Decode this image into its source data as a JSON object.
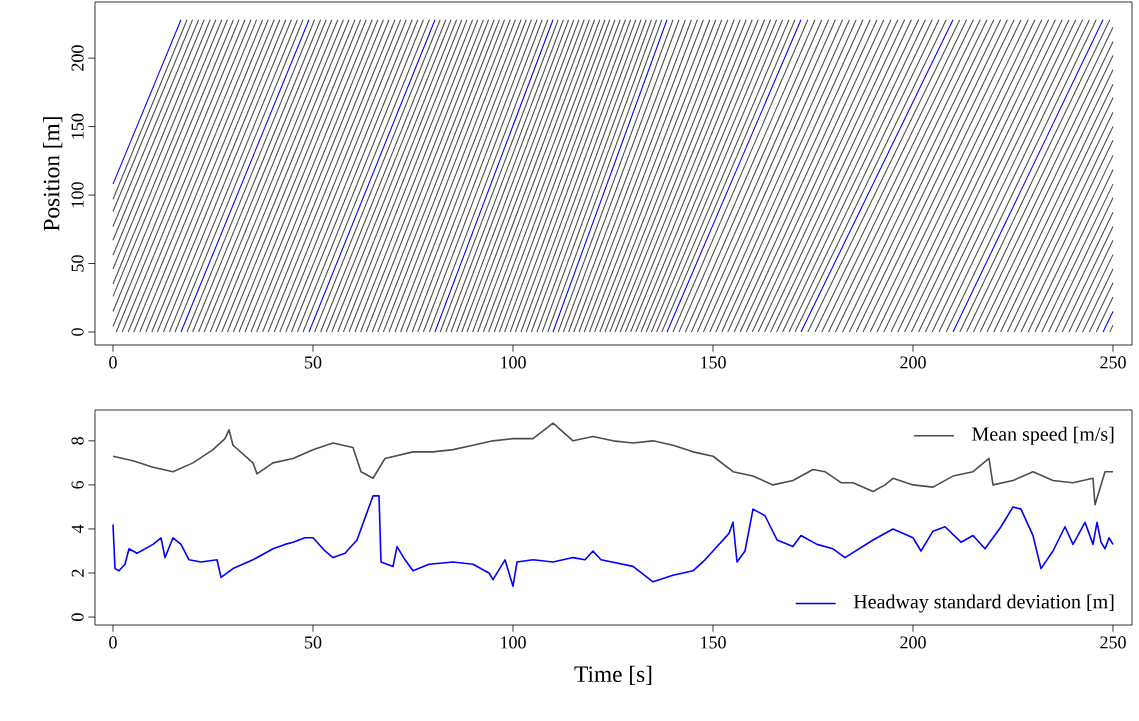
{
  "chart_data": [
    {
      "type": "line",
      "ylabel": "Position [m]",
      "xlim": [
        -4.5,
        254.75
      ],
      "ylim": [
        -9.5,
        241
      ],
      "xticks": [
        0,
        50,
        100,
        150,
        200,
        250
      ],
      "yticks": [
        0,
        50,
        100,
        150,
        200
      ],
      "series": [
        {
          "color": "#4d4d4d",
          "x": [
            0,
            18.5
          ],
          "values": [
            97,
            228
          ]
        },
        {
          "color": "#4d4d4d",
          "x": [
            0,
            19.9
          ],
          "values": [
            88,
            228
          ]
        },
        {
          "color": "#4d4d4d",
          "x": [
            0,
            21.4
          ],
          "values": [
            77,
            228
          ]
        },
        {
          "color": "#4d4d4d",
          "x": [
            0,
            22.8
          ],
          "values": [
            67,
            228
          ]
        },
        {
          "color": "#4d4d4d",
          "x": [
            0,
            24.3
          ],
          "values": [
            56,
            228
          ]
        },
        {
          "color": "#4d4d4d",
          "x": [
            0,
            25.7
          ],
          "values": [
            46,
            228
          ]
        },
        {
          "color": "#4d4d4d",
          "x": [
            0,
            27.2
          ],
          "values": [
            35,
            228
          ]
        },
        {
          "color": "#4d4d4d",
          "x": [
            0,
            28.6
          ],
          "values": [
            26,
            228
          ]
        },
        {
          "color": "#4d4d4d",
          "x": [
            0,
            30.1
          ],
          "values": [
            15,
            228
          ]
        },
        {
          "color": "#4d4d4d",
          "x": [
            0,
            31.5
          ],
          "values": [
            4,
            228
          ]
        },
        {
          "color": "#4d4d4d",
          "x": [
            0.8,
            33
          ],
          "values": [
            0,
            228
          ]
        },
        {
          "color": "#4d4d4d",
          "x": [
            2.3,
            34.5
          ],
          "values": [
            0,
            228
          ]
        },
        {
          "color": "#4d4d4d",
          "x": [
            3.8,
            35.9
          ],
          "values": [
            0,
            228
          ]
        },
        {
          "color": "#4d4d4d",
          "x": [
            5.2,
            37.4
          ],
          "values": [
            0,
            228
          ]
        },
        {
          "color": "#4d4d4d",
          "x": [
            6.7,
            38.8
          ],
          "values": [
            0,
            228
          ]
        },
        {
          "color": "#4d4d4d",
          "x": [
            8.2,
            40.3
          ],
          "values": [
            0,
            228
          ]
        },
        {
          "color": "#4d4d4d",
          "x": [
            9.7,
            41.7
          ],
          "values": [
            0,
            228
          ]
        },
        {
          "color": "#4d4d4d",
          "x": [
            11.1,
            43.2
          ],
          "values": [
            0,
            228
          ]
        },
        {
          "color": "#4d4d4d",
          "x": [
            12.6,
            44.6
          ],
          "values": [
            0,
            228
          ]
        },
        {
          "color": "#4d4d4d",
          "x": [
            14.1,
            46.1
          ],
          "values": [
            0,
            228
          ]
        },
        {
          "color": "#4d4d4d",
          "x": [
            15.5,
            47.5
          ],
          "values": [
            0,
            228
          ]
        },
        {
          "color": "#4d4d4d",
          "x": [
            18.5,
            50.4
          ],
          "values": [
            0,
            228
          ]
        },
        {
          "color": "#4d4d4d",
          "x": [
            19.9,
            51.9
          ],
          "values": [
            0,
            228
          ]
        },
        {
          "color": "#4d4d4d",
          "x": [
            21.4,
            53.3
          ],
          "values": [
            0,
            228
          ]
        },
        {
          "color": "#4d4d4d",
          "x": [
            22.8,
            54.7
          ],
          "values": [
            0,
            228
          ]
        },
        {
          "color": "#4d4d4d",
          "x": [
            24.3,
            56.2
          ],
          "values": [
            0,
            228
          ]
        },
        {
          "color": "#4d4d4d",
          "x": [
            25.7,
            57.6
          ],
          "values": [
            0,
            228
          ]
        },
        {
          "color": "#4d4d4d",
          "x": [
            27.2,
            59
          ],
          "values": [
            0,
            228
          ]
        },
        {
          "color": "#4d4d4d",
          "x": [
            28.6,
            60.5
          ],
          "values": [
            0,
            228
          ]
        },
        {
          "color": "#4d4d4d",
          "x": [
            30.1,
            61.9
          ],
          "values": [
            0,
            228
          ]
        },
        {
          "color": "#4d4d4d",
          "x": [
            31.5,
            63.3
          ],
          "values": [
            0,
            228
          ]
        },
        {
          "color": "#4d4d4d",
          "x": [
            33,
            64.8
          ],
          "values": [
            0,
            228
          ]
        },
        {
          "color": "#4d4d4d",
          "x": [
            34.5,
            66.2
          ],
          "values": [
            0,
            228
          ]
        },
        {
          "color": "#4d4d4d",
          "x": [
            35.9,
            67.6
          ],
          "values": [
            0,
            228
          ]
        },
        {
          "color": "#4d4d4d",
          "x": [
            37.4,
            69
          ],
          "values": [
            0,
            228
          ]
        },
        {
          "color": "#4d4d4d",
          "x": [
            38.8,
            70.5
          ],
          "values": [
            0,
            228
          ]
        },
        {
          "color": "#4d4d4d",
          "x": [
            40.3,
            71.9
          ],
          "values": [
            0,
            228
          ]
        },
        {
          "color": "#4d4d4d",
          "x": [
            41.7,
            73.3
          ],
          "values": [
            0,
            228
          ]
        },
        {
          "color": "#4d4d4d",
          "x": [
            43.2,
            74.8
          ],
          "values": [
            0,
            228
          ]
        },
        {
          "color": "#4d4d4d",
          "x": [
            44.6,
            76.2
          ],
          "values": [
            0,
            228
          ]
        },
        {
          "color": "#4d4d4d",
          "x": [
            46.1,
            77.6
          ],
          "values": [
            0,
            228
          ]
        },
        {
          "color": "#4d4d4d",
          "x": [
            47.5,
            79.1
          ],
          "values": [
            0,
            228
          ]
        },
        {
          "color": "#4d4d4d",
          "x": [
            50.4,
            81.8
          ],
          "values": [
            0,
            228
          ]
        },
        {
          "color": "#4d4d4d",
          "x": [
            51.9,
            83.2
          ],
          "values": [
            0,
            228
          ]
        },
        {
          "color": "#4d4d4d",
          "x": [
            53.3,
            84.5
          ],
          "values": [
            0,
            228
          ]
        },
        {
          "color": "#4d4d4d",
          "x": [
            54.7,
            85.9
          ],
          "values": [
            0,
            228
          ]
        },
        {
          "color": "#4d4d4d",
          "x": [
            56.2,
            87.2
          ],
          "values": [
            0,
            228
          ]
        },
        {
          "color": "#4d4d4d",
          "x": [
            57.6,
            88.5
          ],
          "values": [
            0,
            228
          ]
        },
        {
          "color": "#4d4d4d",
          "x": [
            59,
            89.9
          ],
          "values": [
            0,
            228
          ]
        },
        {
          "color": "#4d4d4d",
          "x": [
            60.5,
            91.2
          ],
          "values": [
            0,
            228
          ]
        },
        {
          "color": "#4d4d4d",
          "x": [
            61.9,
            92.6
          ],
          "values": [
            0,
            228
          ]
        },
        {
          "color": "#4d4d4d",
          "x": [
            63.3,
            93.9
          ],
          "values": [
            0,
            228
          ]
        },
        {
          "color": "#4d4d4d",
          "x": [
            64.8,
            95.3
          ],
          "values": [
            0,
            228
          ]
        },
        {
          "color": "#4d4d4d",
          "x": [
            66.2,
            96.6
          ],
          "values": [
            0,
            228
          ]
        },
        {
          "color": "#4d4d4d",
          "x": [
            67.6,
            97.9
          ],
          "values": [
            0,
            228
          ]
        },
        {
          "color": "#4d4d4d",
          "x": [
            69,
            99.3
          ],
          "values": [
            0,
            228
          ]
        },
        {
          "color": "#4d4d4d",
          "x": [
            70.5,
            100.6
          ],
          "values": [
            0,
            228
          ]
        },
        {
          "color": "#4d4d4d",
          "x": [
            71.9,
            102
          ],
          "values": [
            0,
            228
          ]
        },
        {
          "color": "#4d4d4d",
          "x": [
            73.3,
            103.3
          ],
          "values": [
            0,
            228
          ]
        },
        {
          "color": "#4d4d4d",
          "x": [
            74.8,
            104.6
          ],
          "values": [
            0,
            228
          ]
        },
        {
          "color": "#4d4d4d",
          "x": [
            76.2,
            106
          ],
          "values": [
            0,
            228
          ]
        },
        {
          "color": "#4d4d4d",
          "x": [
            77.6,
            107.3
          ],
          "values": [
            0,
            228
          ]
        },
        {
          "color": "#4d4d4d",
          "x": [
            79.1,
            108.7
          ],
          "values": [
            0,
            228
          ]
        },
        {
          "color": "#4d4d4d",
          "x": [
            81.8,
            111.3
          ],
          "values": [
            0,
            228
          ]
        },
        {
          "color": "#4d4d4d",
          "x": [
            83.2,
            112.6
          ],
          "values": [
            0,
            228
          ]
        },
        {
          "color": "#4d4d4d",
          "x": [
            84.5,
            113.9
          ],
          "values": [
            0,
            228
          ]
        },
        {
          "color": "#4d4d4d",
          "x": [
            85.9,
            115.2
          ],
          "values": [
            0,
            228
          ]
        },
        {
          "color": "#4d4d4d",
          "x": [
            87.2,
            116.5
          ],
          "values": [
            0,
            228
          ]
        },
        {
          "color": "#4d4d4d",
          "x": [
            88.5,
            117.8
          ],
          "values": [
            0,
            228
          ]
        },
        {
          "color": "#4d4d4d",
          "x": [
            89.9,
            119.1
          ],
          "values": [
            0,
            228
          ]
        },
        {
          "color": "#4d4d4d",
          "x": [
            91.2,
            120.4
          ],
          "values": [
            0,
            228
          ]
        },
        {
          "color": "#4d4d4d",
          "x": [
            92.6,
            121.7
          ],
          "values": [
            0,
            228
          ]
        },
        {
          "color": "#4d4d4d",
          "x": [
            93.9,
            123
          ],
          "values": [
            0,
            228
          ]
        },
        {
          "color": "#4d4d4d",
          "x": [
            95.3,
            124.2
          ],
          "values": [
            0,
            228
          ]
        },
        {
          "color": "#4d4d4d",
          "x": [
            96.6,
            125.5
          ],
          "values": [
            0,
            228
          ]
        },
        {
          "color": "#4d4d4d",
          "x": [
            97.9,
            126.8
          ],
          "values": [
            0,
            228
          ]
        },
        {
          "color": "#4d4d4d",
          "x": [
            99.3,
            128.1
          ],
          "values": [
            0,
            228
          ]
        },
        {
          "color": "#4d4d4d",
          "x": [
            100.6,
            129.4
          ],
          "values": [
            0,
            228
          ]
        },
        {
          "color": "#4d4d4d",
          "x": [
            102,
            130.7
          ],
          "values": [
            0,
            228
          ]
        },
        {
          "color": "#4d4d4d",
          "x": [
            103.3,
            132
          ],
          "values": [
            0,
            228
          ]
        },
        {
          "color": "#4d4d4d",
          "x": [
            104.6,
            133.3
          ],
          "values": [
            0,
            228
          ]
        },
        {
          "color": "#4d4d4d",
          "x": [
            106,
            134.6
          ],
          "values": [
            0,
            228
          ]
        },
        {
          "color": "#4d4d4d",
          "x": [
            107.3,
            135.9
          ],
          "values": [
            0,
            228
          ]
        },
        {
          "color": "#4d4d4d",
          "x": [
            108.7,
            137.2
          ],
          "values": [
            0,
            228
          ]
        },
        {
          "color": "#4d4d4d",
          "x": [
            111.3,
            140
          ],
          "values": [
            0,
            228
          ]
        },
        {
          "color": "#4d4d4d",
          "x": [
            112.6,
            141.5
          ],
          "values": [
            0,
            228
          ]
        },
        {
          "color": "#4d4d4d",
          "x": [
            113.9,
            143.1
          ],
          "values": [
            0,
            228
          ]
        },
        {
          "color": "#4d4d4d",
          "x": [
            115.2,
            144.6
          ],
          "values": [
            0,
            228
          ]
        },
        {
          "color": "#4d4d4d",
          "x": [
            116.5,
            146.1
          ],
          "values": [
            0,
            228
          ]
        },
        {
          "color": "#4d4d4d",
          "x": [
            117.8,
            147.6
          ],
          "values": [
            0,
            228
          ]
        },
        {
          "color": "#4d4d4d",
          "x": [
            119.1,
            149.2
          ],
          "values": [
            0,
            228
          ]
        },
        {
          "color": "#4d4d4d",
          "x": [
            120.4,
            150.7
          ],
          "values": [
            0,
            228
          ]
        },
        {
          "color": "#4d4d4d",
          "x": [
            121.7,
            152.2
          ],
          "values": [
            0,
            228
          ]
        },
        {
          "color": "#4d4d4d",
          "x": [
            123,
            153.7
          ],
          "values": [
            0,
            228
          ]
        },
        {
          "color": "#4d4d4d",
          "x": [
            124.2,
            155.3
          ],
          "values": [
            0,
            228
          ]
        },
        {
          "color": "#4d4d4d",
          "x": [
            125.5,
            156.8
          ],
          "values": [
            0,
            228
          ]
        },
        {
          "color": "#4d4d4d",
          "x": [
            126.8,
            158.3
          ],
          "values": [
            0,
            228
          ]
        },
        {
          "color": "#4d4d4d",
          "x": [
            128.1,
            159.8
          ],
          "values": [
            0,
            228
          ]
        },
        {
          "color": "#4d4d4d",
          "x": [
            129.4,
            161.3
          ],
          "values": [
            0,
            228
          ]
        },
        {
          "color": "#4d4d4d",
          "x": [
            130.7,
            162.9
          ],
          "values": [
            0,
            228
          ]
        },
        {
          "color": "#4d4d4d",
          "x": [
            132,
            164.4
          ],
          "values": [
            0,
            228
          ]
        },
        {
          "color": "#4d4d4d",
          "x": [
            133.3,
            165.9
          ],
          "values": [
            0,
            228
          ]
        },
        {
          "color": "#4d4d4d",
          "x": [
            134.6,
            167.4
          ],
          "values": [
            0,
            228
          ]
        },
        {
          "color": "#4d4d4d",
          "x": [
            135.9,
            169
          ],
          "values": [
            0,
            228
          ]
        },
        {
          "color": "#4d4d4d",
          "x": [
            137.2,
            170.5
          ],
          "values": [
            0,
            228
          ]
        },
        {
          "color": "#4d4d4d",
          "x": [
            140,
            173.7
          ],
          "values": [
            0,
            228
          ]
        },
        {
          "color": "#4d4d4d",
          "x": [
            141.5,
            175.5
          ],
          "values": [
            0,
            228
          ]
        },
        {
          "color": "#4d4d4d",
          "x": [
            143.1,
            177.2
          ],
          "values": [
            0,
            228
          ]
        },
        {
          "color": "#4d4d4d",
          "x": [
            144.6,
            178.9
          ],
          "values": [
            0,
            228
          ]
        },
        {
          "color": "#4d4d4d",
          "x": [
            146.1,
            180.6
          ],
          "values": [
            0,
            228
          ]
        },
        {
          "color": "#4d4d4d",
          "x": [
            147.6,
            182.4
          ],
          "values": [
            0,
            228
          ]
        },
        {
          "color": "#4d4d4d",
          "x": [
            149.2,
            184.1
          ],
          "values": [
            0,
            228
          ]
        },
        {
          "color": "#4d4d4d",
          "x": [
            150.7,
            185.8
          ],
          "values": [
            0,
            228
          ]
        },
        {
          "color": "#4d4d4d",
          "x": [
            152.2,
            187.5
          ],
          "values": [
            0,
            228
          ]
        },
        {
          "color": "#4d4d4d",
          "x": [
            153.7,
            189.3
          ],
          "values": [
            0,
            228
          ]
        },
        {
          "color": "#4d4d4d",
          "x": [
            155.3,
            191
          ],
          "values": [
            0,
            228
          ]
        },
        {
          "color": "#4d4d4d",
          "x": [
            156.8,
            192.7
          ],
          "values": [
            0,
            228
          ]
        },
        {
          "color": "#4d4d4d",
          "x": [
            158.3,
            194.5
          ],
          "values": [
            0,
            228
          ]
        },
        {
          "color": "#4d4d4d",
          "x": [
            159.8,
            196.2
          ],
          "values": [
            0,
            228
          ]
        },
        {
          "color": "#4d4d4d",
          "x": [
            161.3,
            197.9
          ],
          "values": [
            0,
            228
          ]
        },
        {
          "color": "#4d4d4d",
          "x": [
            162.9,
            199.6
          ],
          "values": [
            0,
            228
          ]
        },
        {
          "color": "#4d4d4d",
          "x": [
            164.4,
            201.4
          ],
          "values": [
            0,
            228
          ]
        },
        {
          "color": "#4d4d4d",
          "x": [
            165.9,
            203.1
          ],
          "values": [
            0,
            228
          ]
        },
        {
          "color": "#4d4d4d",
          "x": [
            167.4,
            204.8
          ],
          "values": [
            0,
            228
          ]
        },
        {
          "color": "#4d4d4d",
          "x": [
            169,
            206.5
          ],
          "values": [
            0,
            228
          ]
        },
        {
          "color": "#4d4d4d",
          "x": [
            170.5,
            208.3
          ],
          "values": [
            0,
            228
          ]
        },
        {
          "color": "#4d4d4d",
          "x": [
            173.7,
            211.7
          ],
          "values": [
            0,
            228
          ]
        },
        {
          "color": "#4d4d4d",
          "x": [
            175.5,
            213.4
          ],
          "values": [
            0,
            228
          ]
        },
        {
          "color": "#4d4d4d",
          "x": [
            177.2,
            215.1
          ],
          "values": [
            0,
            228
          ]
        },
        {
          "color": "#4d4d4d",
          "x": [
            178.9,
            216.8
          ],
          "values": [
            0,
            228
          ]
        },
        {
          "color": "#4d4d4d",
          "x": [
            180.6,
            218.5
          ],
          "values": [
            0,
            228
          ]
        },
        {
          "color": "#4d4d4d",
          "x": [
            182.4,
            220.2
          ],
          "values": [
            0,
            228
          ]
        },
        {
          "color": "#4d4d4d",
          "x": [
            184.1,
            221.9
          ],
          "values": [
            0,
            228
          ]
        },
        {
          "color": "#4d4d4d",
          "x": [
            185.8,
            223.6
          ],
          "values": [
            0,
            228
          ]
        },
        {
          "color": "#4d4d4d",
          "x": [
            187.5,
            225.3
          ],
          "values": [
            0,
            228
          ]
        },
        {
          "color": "#4d4d4d",
          "x": [
            189.3,
            227
          ],
          "values": [
            0,
            228
          ]
        },
        {
          "color": "#4d4d4d",
          "x": [
            191,
            228.8
          ],
          "values": [
            0,
            228
          ]
        },
        {
          "color": "#4d4d4d",
          "x": [
            192.7,
            230.5
          ],
          "values": [
            0,
            228
          ]
        },
        {
          "color": "#4d4d4d",
          "x": [
            194.5,
            232.2
          ],
          "values": [
            0,
            228
          ]
        },
        {
          "color": "#4d4d4d",
          "x": [
            196.2,
            233.9
          ],
          "values": [
            0,
            228
          ]
        },
        {
          "color": "#4d4d4d",
          "x": [
            197.9,
            235.6
          ],
          "values": [
            0,
            228
          ]
        },
        {
          "color": "#4d4d4d",
          "x": [
            199.6,
            237.3
          ],
          "values": [
            0,
            228
          ]
        },
        {
          "color": "#4d4d4d",
          "x": [
            201.4,
            239
          ],
          "values": [
            0,
            228
          ]
        },
        {
          "color": "#4d4d4d",
          "x": [
            203.1,
            240.7
          ],
          "values": [
            0,
            228
          ]
        },
        {
          "color": "#4d4d4d",
          "x": [
            204.8,
            242.4
          ],
          "values": [
            0,
            228
          ]
        },
        {
          "color": "#4d4d4d",
          "x": [
            206.5,
            244.1
          ],
          "values": [
            0,
            228
          ]
        },
        {
          "color": "#4d4d4d",
          "x": [
            208.3,
            245.8
          ],
          "values": [
            0,
            228
          ]
        },
        {
          "color": "#4d4d4d",
          "x": [
            211.7,
            249.2
          ],
          "values": [
            0,
            228
          ]
        },
        {
          "color": "#4d4d4d",
          "x": [
            213.4,
            250
          ],
          "values": [
            0,
            222.5
          ]
        },
        {
          "color": "#4d4d4d",
          "x": [
            215.1,
            250
          ],
          "values": [
            0,
            212
          ]
        },
        {
          "color": "#4d4d4d",
          "x": [
            216.8,
            250
          ],
          "values": [
            0,
            202
          ]
        },
        {
          "color": "#4d4d4d",
          "x": [
            218.5,
            250
          ],
          "values": [
            0,
            191.5
          ]
        },
        {
          "color": "#4d4d4d",
          "x": [
            220.2,
            250
          ],
          "values": [
            0,
            181
          ]
        },
        {
          "color": "#4d4d4d",
          "x": [
            221.9,
            250
          ],
          "values": [
            0,
            171
          ]
        },
        {
          "color": "#4d4d4d",
          "x": [
            223.6,
            250
          ],
          "values": [
            0,
            160.5
          ]
        },
        {
          "color": "#4d4d4d",
          "x": [
            225.3,
            250
          ],
          "values": [
            0,
            150
          ]
        },
        {
          "color": "#4d4d4d",
          "x": [
            227,
            250
          ],
          "values": [
            0,
            140
          ]
        },
        {
          "color": "#4d4d4d",
          "x": [
            228.8,
            250
          ],
          "values": [
            0,
            129
          ]
        },
        {
          "color": "#4d4d4d",
          "x": [
            230.5,
            250
          ],
          "values": [
            0,
            118.5
          ]
        },
        {
          "color": "#4d4d4d",
          "x": [
            232.2,
            250
          ],
          "values": [
            0,
            108
          ]
        },
        {
          "color": "#4d4d4d",
          "x": [
            233.9,
            250
          ],
          "values": [
            0,
            98
          ]
        },
        {
          "color": "#4d4d4d",
          "x": [
            235.6,
            250
          ],
          "values": [
            0,
            87.5
          ]
        },
        {
          "color": "#4d4d4d",
          "x": [
            237.3,
            250
          ],
          "values": [
            0,
            77
          ]
        },
        {
          "color": "#4d4d4d",
          "x": [
            239,
            250
          ],
          "values": [
            0,
            67
          ]
        },
        {
          "color": "#4d4d4d",
          "x": [
            240.7,
            250
          ],
          "values": [
            0,
            56.5
          ]
        },
        {
          "color": "#4d4d4d",
          "x": [
            242.4,
            250
          ],
          "values": [
            0,
            46
          ]
        },
        {
          "color": "#4d4d4d",
          "x": [
            244.1,
            250
          ],
          "values": [
            0,
            36
          ]
        },
        {
          "color": "#4d4d4d",
          "x": [
            245.8,
            250
          ],
          "values": [
            0,
            25.5
          ]
        },
        {
          "color": "#4d4d4d",
          "x": [
            249.2,
            250
          ],
          "values": [
            0,
            5
          ]
        },
        {
          "color": "#0000ff",
          "x": [
            0,
            17
          ],
          "values": [
            108,
            228
          ]
        },
        {
          "color": "#0000ff",
          "x": [
            17,
            49
          ],
          "values": [
            0,
            228
          ]
        },
        {
          "color": "#0000ff",
          "x": [
            49,
            80.5
          ],
          "values": [
            0,
            228
          ]
        },
        {
          "color": "#0000ff",
          "x": [
            80.5,
            110
          ],
          "values": [
            0,
            228
          ]
        },
        {
          "color": "#0000ff",
          "x": [
            110,
            138.5
          ],
          "values": [
            0,
            228
          ]
        },
        {
          "color": "#0000ff",
          "x": [
            138.5,
            172
          ],
          "values": [
            0,
            228
          ]
        },
        {
          "color": "#0000ff",
          "x": [
            172,
            210
          ],
          "values": [
            0,
            228
          ]
        },
        {
          "color": "#0000ff",
          "x": [
            210,
            247.5
          ],
          "values": [
            0,
            228
          ]
        },
        {
          "color": "#0000ff",
          "x": [
            247.5,
            250
          ],
          "values": [
            0,
            15
          ]
        }
      ]
    },
    {
      "type": "line",
      "xlabel": "Time [s]",
      "xlim": [
        -4.5,
        254.75
      ],
      "ylim": [
        -0.36,
        9.4
      ],
      "xticks": [
        0,
        50,
        100,
        150,
        200,
        250
      ],
      "yticks": [
        0,
        2,
        4,
        6,
        8
      ],
      "legend": "right",
      "series": [
        {
          "name": "Mean speed [m/s]",
          "color": "#4d4d4d",
          "x": [
            0,
            5,
            10,
            15,
            20,
            25,
            28,
            29,
            30,
            35,
            36,
            40,
            45,
            50,
            55,
            60,
            62,
            65,
            68,
            75,
            80,
            85,
            90,
            95,
            100,
            105,
            110,
            115,
            120,
            125,
            130,
            135,
            140,
            145,
            150,
            155,
            160,
            165,
            170,
            175,
            178,
            182,
            185,
            190,
            193,
            195,
            200,
            205,
            210,
            215,
            219,
            220,
            225,
            230,
            235,
            240,
            245,
            245.5,
            248,
            250
          ],
          "values": [
            7.3,
            7.1,
            6.8,
            6.6,
            7.0,
            7.6,
            8.1,
            8.5,
            7.8,
            7.0,
            6.5,
            7.0,
            7.2,
            7.6,
            7.9,
            7.7,
            6.6,
            6.3,
            7.2,
            7.5,
            7.5,
            7.6,
            7.8,
            8.0,
            8.1,
            8.1,
            8.8,
            8.0,
            8.2,
            8.0,
            7.9,
            8.0,
            7.8,
            7.5,
            7.3,
            6.6,
            6.4,
            6.0,
            6.2,
            6.7,
            6.6,
            6.1,
            6.1,
            5.7,
            6.0,
            6.3,
            6.0,
            5.9,
            6.4,
            6.6,
            7.2,
            6.0,
            6.2,
            6.6,
            6.2,
            6.1,
            6.3,
            5.1,
            6.6,
            6.6
          ]
        },
        {
          "name": "Headway standard deviation [m]",
          "color": "#0000ff",
          "x": [
            0,
            0.5,
            1.5,
            3,
            4,
            6,
            10,
            12,
            13,
            15,
            17,
            19,
            22,
            26,
            27,
            30,
            35,
            40,
            43,
            45,
            48,
            50,
            53,
            55,
            58,
            61,
            63,
            65,
            66.5,
            67,
            70,
            71,
            73,
            75,
            79,
            85,
            90,
            94,
            95,
            98,
            100,
            101,
            105,
            110,
            115,
            118,
            120,
            122,
            130,
            135,
            140,
            145,
            148,
            150,
            154,
            155,
            156,
            158,
            160,
            163,
            166,
            170,
            172,
            176,
            180,
            183,
            190,
            195,
            200,
            202,
            205,
            208,
            212,
            215,
            218,
            222,
            225,
            227,
            230,
            232,
            235,
            238,
            240,
            243,
            245,
            246,
            247,
            248,
            249,
            250
          ],
          "values": [
            4.2,
            2.2,
            2.1,
            2.4,
            3.1,
            2.9,
            3.3,
            3.6,
            2.7,
            3.6,
            3.3,
            2.6,
            2.5,
            2.6,
            1.8,
            2.2,
            2.6,
            3.1,
            3.3,
            3.4,
            3.6,
            3.6,
            3.0,
            2.7,
            2.9,
            3.5,
            4.5,
            5.5,
            5.5,
            2.5,
            2.3,
            3.2,
            2.6,
            2.1,
            2.4,
            2.5,
            2.4,
            2.0,
            1.7,
            2.6,
            1.4,
            2.5,
            2.6,
            2.5,
            2.7,
            2.6,
            3.0,
            2.6,
            2.3,
            1.6,
            1.9,
            2.1,
            2.6,
            3.0,
            3.8,
            4.3,
            2.5,
            3.0,
            4.9,
            4.6,
            3.5,
            3.2,
            3.7,
            3.3,
            3.1,
            2.7,
            3.5,
            4.0,
            3.6,
            3.0,
            3.9,
            4.1,
            3.4,
            3.7,
            3.1,
            4.1,
            5.0,
            4.9,
            3.7,
            2.2,
            3.0,
            4.1,
            3.3,
            4.3,
            3.3,
            4.3,
            3.4,
            3.1,
            3.6,
            3.3
          ]
        }
      ]
    }
  ]
}
